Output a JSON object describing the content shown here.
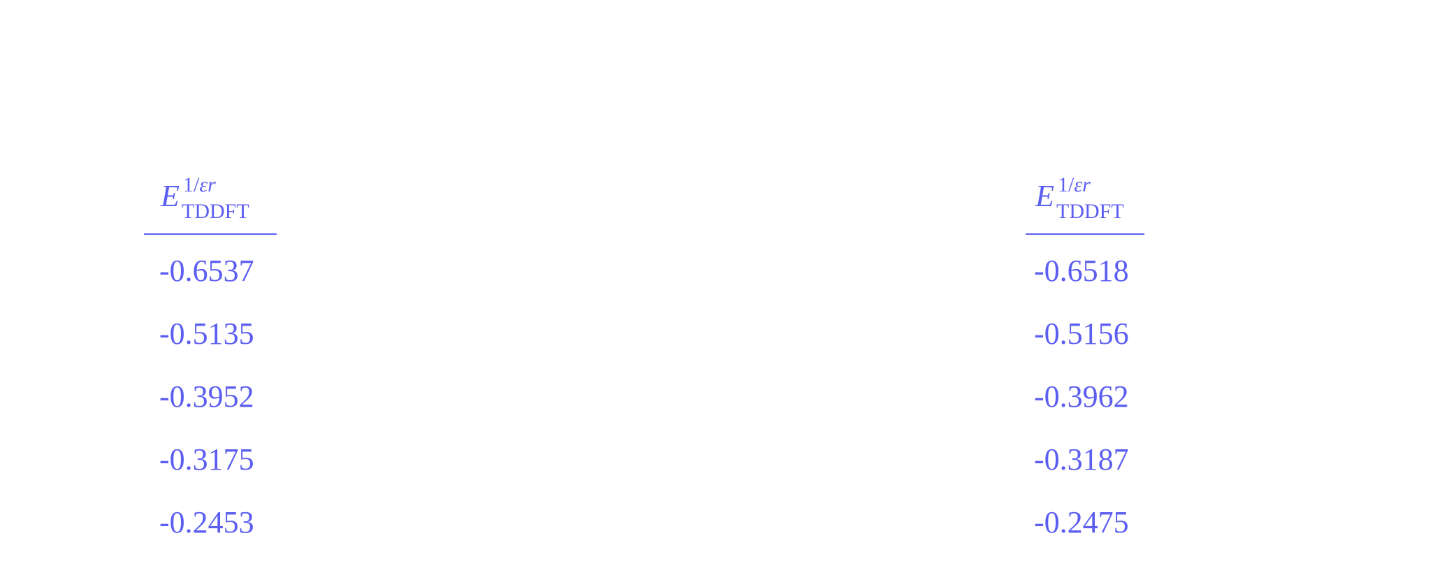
{
  "columns": [
    {
      "header": {
        "symbol": "E",
        "superscript_num": "1/",
        "superscript_var": "εr",
        "subscript": "TDDFT"
      },
      "values": [
        "-0.6537",
        "-0.5135",
        "-0.3952",
        "-0.3175",
        "-0.2453"
      ]
    },
    {
      "header": {
        "symbol": "E",
        "superscript_num": "1/",
        "superscript_var": "εr",
        "subscript": "TDDFT"
      },
      "values": [
        "-0.6518",
        "-0.5156",
        "-0.3962",
        "-0.3187",
        "-0.2475"
      ]
    }
  ],
  "colors": {
    "text": "#5b5ef0",
    "background": "#ffffff"
  }
}
